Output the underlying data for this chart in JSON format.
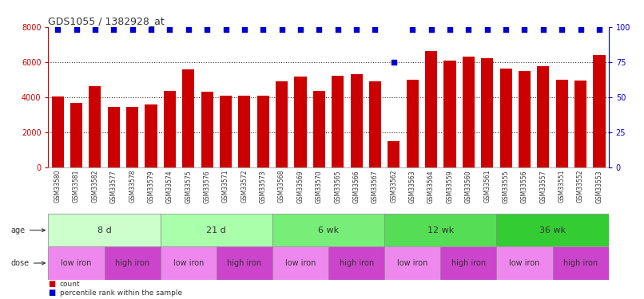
{
  "title": "GDS1055 / 1382928_at",
  "samples": [
    "GSM33580",
    "GSM33581",
    "GSM33582",
    "GSM33577",
    "GSM33578",
    "GSM33579",
    "GSM33574",
    "GSM33575",
    "GSM33576",
    "GSM33571",
    "GSM33572",
    "GSM33573",
    "GSM33568",
    "GSM33569",
    "GSM33570",
    "GSM33565",
    "GSM33566",
    "GSM33567",
    "GSM33562",
    "GSM33563",
    "GSM33564",
    "GSM33559",
    "GSM33560",
    "GSM33561",
    "GSM33555",
    "GSM33556",
    "GSM33557",
    "GSM33551",
    "GSM33552",
    "GSM33553"
  ],
  "counts": [
    4050,
    3680,
    4650,
    3450,
    3430,
    3580,
    4380,
    5580,
    4330,
    4100,
    4100,
    4080,
    4900,
    5180,
    4350,
    5200,
    5330,
    4890,
    1480,
    5010,
    6630,
    6080,
    6290,
    6230,
    5610,
    5490,
    5780,
    4990,
    4940,
    6390
  ],
  "percentile_ranks": [
    98,
    98,
    98,
    98,
    98,
    98,
    98,
    98,
    98,
    98,
    98,
    98,
    98,
    98,
    98,
    98,
    98,
    98,
    75,
    98,
    98,
    98,
    98,
    98,
    98,
    98,
    98,
    98,
    98,
    98
  ],
  "age_groups": [
    {
      "label": "8 d",
      "start": 0,
      "end": 6,
      "color": "#ccffcc"
    },
    {
      "label": "21 d",
      "start": 6,
      "end": 12,
      "color": "#aaffaa"
    },
    {
      "label": "6 wk",
      "start": 12,
      "end": 18,
      "color": "#77ee77"
    },
    {
      "label": "12 wk",
      "start": 18,
      "end": 24,
      "color": "#55dd55"
    },
    {
      "label": "36 wk",
      "start": 24,
      "end": 30,
      "color": "#33cc33"
    }
  ],
  "dose_groups": [
    {
      "label": "low iron",
      "start": 0,
      "end": 3,
      "color": "#ee88ee"
    },
    {
      "label": "high iron",
      "start": 3,
      "end": 6,
      "color": "#cc44cc"
    },
    {
      "label": "low iron",
      "start": 6,
      "end": 9,
      "color": "#ee88ee"
    },
    {
      "label": "high iron",
      "start": 9,
      "end": 12,
      "color": "#cc44cc"
    },
    {
      "label": "low iron",
      "start": 12,
      "end": 15,
      "color": "#ee88ee"
    },
    {
      "label": "high iron",
      "start": 15,
      "end": 18,
      "color": "#cc44cc"
    },
    {
      "label": "low iron",
      "start": 18,
      "end": 21,
      "color": "#ee88ee"
    },
    {
      "label": "high iron",
      "start": 21,
      "end": 24,
      "color": "#cc44cc"
    },
    {
      "label": "low iron",
      "start": 24,
      "end": 27,
      "color": "#ee88ee"
    },
    {
      "label": "high iron",
      "start": 27,
      "end": 30,
      "color": "#cc44cc"
    }
  ],
  "bar_color": "#cc0000",
  "dot_color": "#0000cc",
  "title_color": "#333333",
  "left_axis_color": "#cc0000",
  "right_axis_color": "#0000cc",
  "ylim_left": [
    0,
    8000
  ],
  "ylim_right": [
    0,
    100
  ],
  "yticks_left": [
    0,
    2000,
    4000,
    6000,
    8000
  ],
  "yticks_right": [
    0,
    25,
    50,
    75,
    100
  ],
  "background_color": "#ffffff",
  "grid_color": "#333333",
  "tick_bg_color": "#cccccc",
  "legend_count_color": "#cc0000",
  "legend_pct_color": "#0000cc"
}
